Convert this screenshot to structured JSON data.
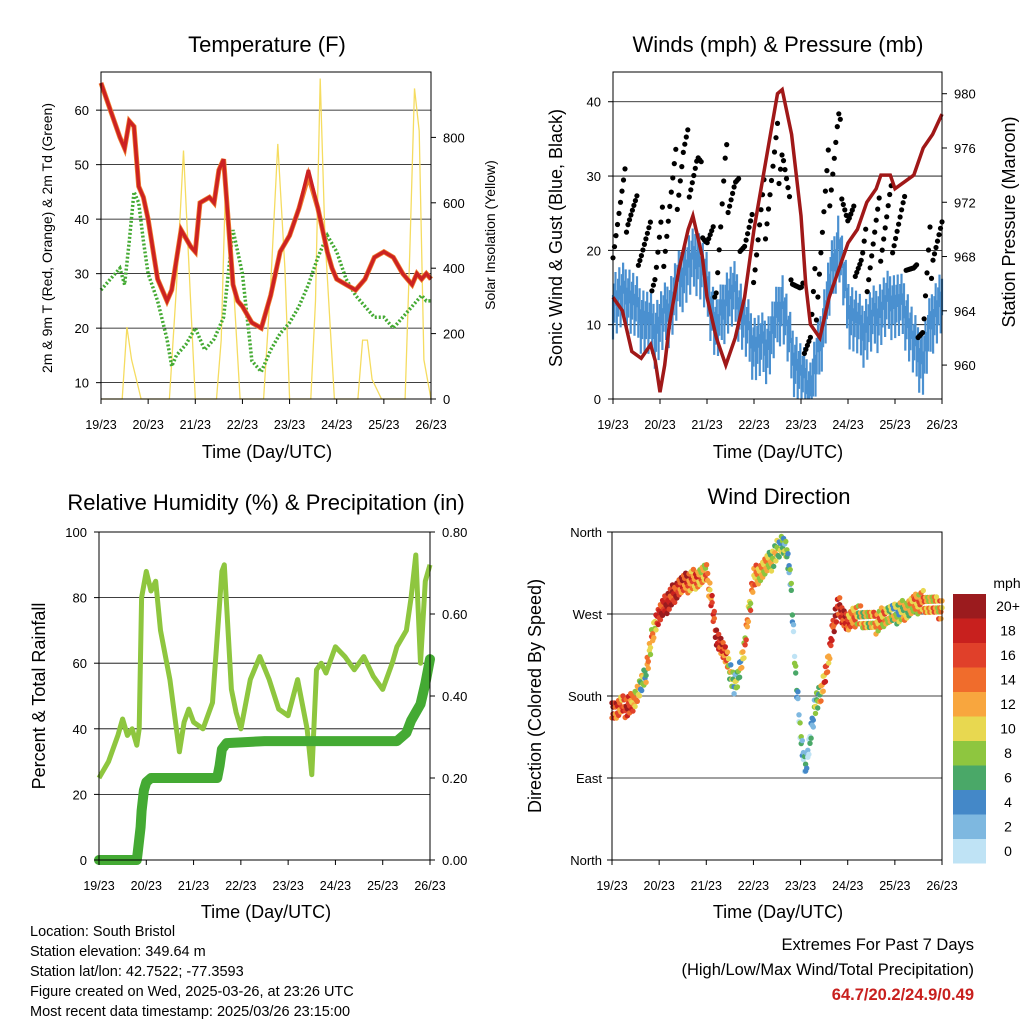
{
  "panels": {
    "temperature": {
      "title": "Temperature (F)",
      "xlabel": "Time (Day/UTC)",
      "ylabel_left": "2m & 9m T (Red, Orange) & 2m Td (Green)",
      "ylabel_right": "Solar Insolation (Yellow)"
    },
    "winds": {
      "title": "Winds (mph) & Pressure (mb)",
      "xlabel": "Time (Day/UTC)",
      "ylabel_left": "Sonic Wind & Gust (Blue, Black)",
      "ylabel_right": "Station Pressure (Maroon)"
    },
    "humidity": {
      "title": "Relative Humidity (%) & Precipitation (in)",
      "xlabel": "Time (Day/UTC)",
      "ylabel_left": "Percent & Total Rainfall"
    },
    "direction": {
      "title": "Wind Direction",
      "xlabel": "Time (Day/UTC)",
      "ylabel_left": "Direction (Colored By Speed)",
      "legend_title": "mph"
    }
  },
  "info": {
    "location": "Location: South Bristol",
    "elevation": "Station elevation: 349.64 m",
    "latlon": "Station lat/lon: 42.7522; -77.3593",
    "created": "Figure created on Wed, 2025-03-26, at 23:26 UTC",
    "recent": "Most recent data timestamp: 2025/03/26 23:15:00"
  },
  "extremes": {
    "line1": "Extremes For Past 7 Days",
    "line2": "(High/Low/Max Wind/Total Precipitation)",
    "values": "64.7/20.2/24.9/0.49"
  },
  "colors": {
    "temp_2m": "#cc2222",
    "temp_9m": "#f08030",
    "dewpoint": "#44aa33",
    "solar": "#f5dc60",
    "wind": "#4a90d0",
    "gust": "#000000",
    "pressure": "#a01818",
    "rh": "#8ec63f",
    "precip": "#44aa33"
  },
  "chart_data": [
    {
      "type": "line",
      "name": "temperature",
      "x_ticks": [
        "19/23",
        "20/23",
        "21/23",
        "22/23",
        "23/23",
        "24/23",
        "25/23",
        "26/23"
      ],
      "x_range": [
        0,
        7
      ],
      "y_left_ticks": [
        10,
        20,
        30,
        40,
        50,
        60
      ],
      "ylim_left": [
        7,
        67
      ],
      "y_right_ticks": [
        0,
        200,
        400,
        600,
        800
      ],
      "ylim_right": [
        0,
        1000
      ],
      "grid": true,
      "series": [
        {
          "key": "temp_2m",
          "axis": "left",
          "x": [
            0,
            0.2,
            0.4,
            0.5,
            0.6,
            0.7,
            0.8,
            0.9,
            1.0,
            1.2,
            1.4,
            1.5,
            1.7,
            1.9,
            2.0,
            2.1,
            2.3,
            2.4,
            2.5,
            2.6,
            2.8,
            2.9,
            3.0,
            3.2,
            3.4,
            3.6,
            3.8,
            4.0,
            4.2,
            4.4,
            4.6,
            4.7,
            4.8,
            4.9,
            5.0,
            5.2,
            5.4,
            5.6,
            5.8,
            6.0,
            6.2,
            6.4,
            6.5,
            6.6,
            6.7,
            6.8,
            6.9,
            7.0
          ],
          "y": [
            65,
            60,
            55,
            53,
            58,
            57,
            46,
            44,
            40,
            29,
            25,
            27,
            38,
            35,
            34,
            43,
            44,
            43,
            49,
            51,
            28,
            25,
            24,
            21,
            20,
            26,
            34,
            37,
            42,
            49,
            42,
            38,
            34,
            31,
            29,
            28,
            27,
            29,
            33,
            34,
            33,
            30,
            29,
            28,
            30,
            29,
            30,
            29
          ]
        },
        {
          "key": "temp_9m",
          "axis": "left",
          "x": [
            0,
            0.2,
            0.4,
            0.5,
            0.6,
            0.7,
            0.8,
            0.9,
            1.0,
            1.2,
            1.4,
            1.5,
            1.7,
            1.9,
            2.0,
            2.1,
            2.3,
            2.4,
            2.5,
            2.6,
            2.8,
            2.9,
            3.0,
            3.2,
            3.4,
            3.6,
            3.8,
            4.0,
            4.2,
            4.4,
            4.6,
            4.7,
            4.8,
            4.9,
            5.0,
            5.2,
            5.4,
            5.6,
            5.8,
            6.0,
            6.2,
            6.4,
            6.5,
            6.6,
            6.7,
            6.8,
            6.9,
            7.0
          ],
          "y": [
            65,
            60,
            55,
            53,
            58,
            57,
            46,
            44,
            40,
            29,
            25,
            27,
            38,
            35,
            34,
            43,
            44,
            43,
            49,
            51,
            28,
            25,
            24,
            21,
            20,
            26,
            34,
            37,
            42,
            48,
            42,
            38,
            34,
            31,
            29,
            28,
            27,
            29,
            33,
            34,
            33,
            30,
            29,
            28,
            30,
            29,
            30,
            29
          ]
        },
        {
          "key": "dewpoint",
          "axis": "left",
          "x": [
            0,
            0.2,
            0.4,
            0.5,
            0.6,
            0.7,
            0.8,
            0.9,
            1.0,
            1.2,
            1.4,
            1.5,
            1.6,
            1.8,
            2.0,
            2.2,
            2.4,
            2.6,
            2.8,
            3.0,
            3.2,
            3.4,
            3.6,
            3.8,
            4.0,
            4.2,
            4.4,
            4.6,
            4.8,
            5.0,
            5.2,
            5.4,
            5.6,
            5.8,
            6.0,
            6.2,
            6.4,
            6.6,
            6.8,
            6.9,
            7.0
          ],
          "y": [
            27,
            29,
            31,
            28,
            36,
            45,
            43,
            36,
            30,
            25,
            18,
            13,
            15,
            17,
            20,
            16,
            18,
            22,
            38,
            30,
            14,
            12,
            16,
            19,
            21,
            24,
            28,
            33,
            37,
            34,
            29,
            26,
            24,
            22,
            22,
            20,
            22,
            24,
            26,
            25,
            25
          ]
        },
        {
          "key": "solar",
          "axis": "right",
          "x": [
            0,
            0.45,
            0.55,
            0.65,
            0.75,
            0.85,
            0.95,
            1.45,
            1.6,
            1.75,
            1.9,
            2.0,
            2.45,
            2.55,
            2.65,
            2.75,
            2.95,
            3.45,
            3.6,
            3.75,
            3.9,
            4.0,
            4.45,
            4.55,
            4.65,
            4.75,
            4.95,
            5.45,
            5.55,
            5.65,
            5.75,
            5.95,
            6.45,
            6.55,
            6.65,
            6.75,
            6.85,
            7.0
          ],
          "y": [
            0,
            0,
            220,
            120,
            60,
            0,
            0,
            0,
            340,
            760,
            300,
            0,
            0,
            180,
            700,
            500,
            0,
            0,
            350,
            780,
            400,
            0,
            0,
            300,
            980,
            500,
            0,
            0,
            180,
            180,
            60,
            0,
            0,
            450,
            950,
            820,
            120,
            0
          ]
        }
      ]
    },
    {
      "type": "line",
      "name": "winds_pressure",
      "x_ticks": [
        "19/23",
        "20/23",
        "21/23",
        "22/23",
        "23/23",
        "24/23",
        "25/23",
        "26/23"
      ],
      "x_range": [
        0,
        7
      ],
      "y_left_ticks": [
        0,
        10,
        20,
        30,
        40
      ],
      "ylim_left": [
        0,
        44
      ],
      "y_right_ticks": [
        960,
        964,
        968,
        972,
        976,
        980
      ],
      "ylim_right": [
        957.5,
        981.6
      ],
      "grid": true,
      "series": [
        {
          "key": "wind",
          "axis": "left",
          "x": [
            0,
            0.3,
            0.6,
            0.9,
            1.2,
            1.5,
            1.8,
            2.0,
            2.2,
            2.4,
            2.6,
            2.8,
            3.0,
            3.3,
            3.6,
            3.8,
            4.0,
            4.2,
            4.4,
            4.6,
            4.8,
            5.0,
            5.3,
            5.6,
            5.9,
            6.2,
            6.4,
            6.6,
            6.8,
            7.0
          ],
          "y": [
            14,
            15,
            12,
            10,
            13,
            18,
            20,
            16,
            10,
            14,
            15,
            11,
            8,
            8,
            14,
            7,
            4,
            2,
            8,
            16,
            22,
            13,
            10,
            12,
            14,
            13,
            8,
            6,
            12,
            14
          ]
        },
        {
          "key": "gust",
          "axis": "left",
          "x": [
            0,
            0.3,
            0.6,
            0.9,
            1.2,
            1.5,
            1.8,
            2.0,
            2.2,
            2.4,
            2.6,
            2.8,
            3.0,
            3.3,
            3.6,
            3.8,
            4.0,
            4.2,
            4.4,
            4.6,
            4.8,
            5.0,
            5.3,
            5.6,
            5.9,
            6.2,
            6.4,
            6.6,
            6.8,
            7.0
          ],
          "y": [
            24,
            27,
            22,
            18,
            26,
            33,
            31,
            22,
            18,
            30,
            28,
            22,
            20,
            28,
            35,
            20,
            12,
            8,
            20,
            30,
            36,
            24,
            18,
            22,
            25,
            23,
            16,
            10,
            22,
            20
          ]
        },
        {
          "key": "pressure",
          "axis": "right",
          "x": [
            0,
            0.2,
            0.4,
            0.6,
            0.8,
            0.9,
            1.0,
            1.1,
            1.2,
            1.4,
            1.6,
            1.7,
            1.9,
            2.0,
            2.2,
            2.4,
            2.6,
            2.8,
            3.0,
            3.2,
            3.4,
            3.5,
            3.6,
            3.8,
            4.0,
            4.1,
            4.2,
            4.4,
            4.6,
            4.8,
            5.0,
            5.2,
            5.4,
            5.6,
            5.7,
            5.9,
            6.0,
            6.2,
            6.4,
            6.6,
            6.8,
            7.0
          ],
          "y": [
            965,
            964,
            961,
            960.5,
            961.5,
            960.3,
            958,
            960,
            963,
            967,
            970,
            971,
            968,
            965,
            962,
            960,
            962,
            965,
            970,
            974,
            978,
            980,
            980.3,
            977,
            971,
            966,
            963,
            962,
            965,
            967,
            969,
            970,
            972,
            973,
            974,
            974,
            973,
            973.5,
            974,
            976,
            977,
            978.5
          ]
        }
      ]
    },
    {
      "type": "line",
      "name": "humidity_precip",
      "x_ticks": [
        "19/23",
        "20/23",
        "21/23",
        "22/23",
        "23/23",
        "24/23",
        "25/23",
        "26/23"
      ],
      "x_range": [
        0,
        7
      ],
      "y_left_ticks": [
        0,
        20,
        40,
        60,
        80,
        100
      ],
      "ylim_left": [
        0,
        100
      ],
      "y_right_ticks": [
        "0.00",
        "0.20",
        "0.40",
        "0.60",
        "0.80"
      ],
      "ylim_right": [
        0,
        0.8
      ],
      "grid": true,
      "series": [
        {
          "key": "rh",
          "axis": "left",
          "x": [
            0,
            0.2,
            0.4,
            0.5,
            0.6,
            0.7,
            0.8,
            0.85,
            0.9,
            1.0,
            1.1,
            1.2,
            1.3,
            1.5,
            1.7,
            1.8,
            1.9,
            2.0,
            2.2,
            2.4,
            2.6,
            2.65,
            2.8,
            2.9,
            3.0,
            3.2,
            3.4,
            3.6,
            3.8,
            4.0,
            4.2,
            4.4,
            4.5,
            4.6,
            4.7,
            4.8,
            5.0,
            5.2,
            5.4,
            5.6,
            5.8,
            6.0,
            6.2,
            6.3,
            6.5,
            6.6,
            6.7,
            6.8,
            6.9,
            7.0
          ],
          "y": [
            25,
            30,
            38,
            43,
            38,
            40,
            35,
            40,
            80,
            88,
            82,
            85,
            70,
            55,
            33,
            42,
            46,
            42,
            40,
            48,
            88,
            90,
            52,
            45,
            40,
            55,
            62,
            55,
            46,
            44,
            55,
            40,
            26,
            58,
            60,
            57,
            65,
            62,
            58,
            62,
            56,
            52,
            60,
            65,
            70,
            80,
            93,
            60,
            85,
            90
          ]
        },
        {
          "key": "precip",
          "axis": "right",
          "x": [
            0,
            0.8,
            0.82,
            0.88,
            0.9,
            0.95,
            1.0,
            1.1,
            1.3,
            2.5,
            2.55,
            2.6,
            2.7,
            3.5,
            6.3,
            6.5,
            6.6,
            6.7,
            6.8,
            6.9,
            7.0
          ],
          "y": [
            0,
            0,
            0.02,
            0.08,
            0.12,
            0.17,
            0.19,
            0.2,
            0.2,
            0.2,
            0.23,
            0.27,
            0.285,
            0.29,
            0.29,
            0.31,
            0.34,
            0.36,
            0.38,
            0.43,
            0.49
          ]
        }
      ]
    },
    {
      "type": "scatter",
      "name": "wind_direction",
      "x_ticks": [
        "19/23",
        "20/23",
        "21/23",
        "22/23",
        "23/23",
        "24/23",
        "25/23",
        "26/23"
      ],
      "x_range": [
        0,
        7
      ],
      "y_ticks": [
        "North",
        "East",
        "South",
        "West",
        "North"
      ],
      "y_tick_degrees": [
        0,
        90,
        180,
        270,
        360
      ],
      "ylim": [
        0,
        360
      ],
      "grid": true,
      "color_legend": {
        "labels": [
          "20+",
          "18",
          "16",
          "14",
          "12",
          "10",
          "8",
          "6",
          "4",
          "2",
          "0"
        ],
        "colors": [
          "#9b1b1e",
          "#c8201e",
          "#e0402a",
          "#f06c2c",
          "#f8a63e",
          "#e8d850",
          "#8ec63f",
          "#4aa868",
          "#4488c8",
          "#7eb8e0",
          "#bfe3f5"
        ]
      },
      "series": [
        {
          "x": [
            0,
            0.1,
            0.2,
            0.3,
            0.4,
            0.5,
            0.6,
            0.7,
            0.8,
            0.9,
            1.0,
            1.2,
            1.4,
            1.6,
            1.8,
            2.0,
            2.1,
            2.2,
            2.4,
            2.5,
            2.6,
            2.8,
            3.0,
            3.2,
            3.4,
            3.6,
            3.7,
            3.8,
            3.9,
            4.0,
            4.1,
            4.2,
            4.3,
            4.4,
            4.5,
            4.6,
            4.7,
            4.8,
            5.0,
            5.2,
            5.4,
            5.6,
            5.8,
            6.0,
            6.2,
            6.4,
            6.6,
            6.8,
            7.0
          ],
          "y": [
            168,
            165,
            170,
            168,
            172,
            180,
            190,
            200,
            230,
            260,
            270,
            285,
            300,
            305,
            310,
            315,
            290,
            250,
            225,
            210,
            190,
            230,
            310,
            320,
            330,
            350,
            340,
            300,
            200,
            140,
            100,
            130,
            170,
            180,
            200,
            220,
            260,
            280,
            260,
            270,
            265,
            260,
            270,
            270,
            275,
            280,
            285,
            280,
            275
          ],
          "speed": [
            18,
            16,
            14,
            18,
            16,
            12,
            10,
            8,
            14,
            12,
            18,
            20,
            18,
            16,
            14,
            12,
            16,
            20,
            16,
            10,
            6,
            12,
            14,
            12,
            10,
            8,
            6,
            6,
            4,
            6,
            2,
            4,
            6,
            10,
            14,
            16,
            18,
            20,
            16,
            12,
            10,
            14,
            12,
            8,
            10,
            12,
            14,
            12,
            14
          ]
        }
      ]
    }
  ]
}
